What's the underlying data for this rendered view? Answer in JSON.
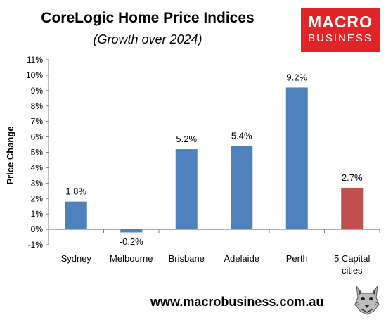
{
  "chart_data": {
    "type": "bar",
    "title": "CoreLogic Home Price Indices",
    "subtitle": "(Growth over 2024)",
    "ylabel": "Price Change",
    "xlabel": "",
    "categories": [
      [
        "Sydney"
      ],
      [
        "Melbourne"
      ],
      [
        "Brisbane"
      ],
      [
        "Adelaide"
      ],
      [
        "Perth"
      ],
      [
        "5 Capital",
        "cities"
      ]
    ],
    "values": [
      1.8,
      -0.2,
      5.2,
      5.4,
      9.2,
      2.7
    ],
    "data_labels": [
      "1.8%",
      "-0.2%",
      "5.2%",
      "5.4%",
      "9.2%",
      "2.7%"
    ],
    "ylim": [
      -1,
      11
    ],
    "y_ticks": [
      -1,
      0,
      1,
      2,
      3,
      4,
      5,
      6,
      7,
      8,
      9,
      10,
      11
    ],
    "y_tick_labels": [
      "-1%",
      "0%",
      "1%",
      "2%",
      "3%",
      "4%",
      "5%",
      "6%",
      "7%",
      "8%",
      "9%",
      "10%",
      "11%"
    ],
    "colors": [
      "#4f81bd",
      "#4f81bd",
      "#4f81bd",
      "#4f81bd",
      "#4f81bd",
      "#c0504d"
    ],
    "grid": false,
    "legend": "none"
  },
  "branding": {
    "logo_line1": "MACRO",
    "logo_line2": "BUSINESS",
    "logo_color": "#e02428",
    "url": "www.macrobusiness.com.au",
    "mascot_icon": "wolf-icon"
  }
}
